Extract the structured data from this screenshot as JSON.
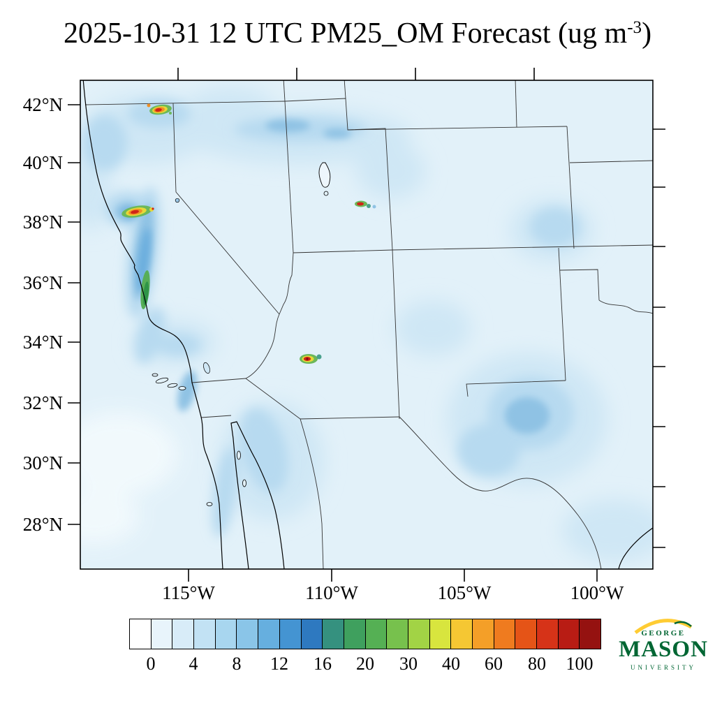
{
  "title": {
    "main": "2025-10-31 12 UTC PM25_OM Forecast (ug m",
    "sup": "-3",
    "close": ")"
  },
  "axes": {
    "lat_labels": [
      "42°N",
      "40°N",
      "38°N",
      "36°N",
      "34°N",
      "32°N",
      "30°N",
      "28°N"
    ],
    "lon_labels": [
      "115°W",
      "110°W",
      "105°W",
      "100°W"
    ]
  },
  "colorbar": {
    "tick_labels": [
      "0",
      "4",
      "8",
      "12",
      "16",
      "20",
      "30",
      "40",
      "60",
      "80",
      "100"
    ],
    "cell_colors": [
      "#ffffff",
      "#e8f4fb",
      "#d8ecf8",
      "#c2e2f4",
      "#a8d6ef",
      "#8ac5e8",
      "#66afdf",
      "#4494d2",
      "#2e79c0",
      "#35917f",
      "#3fa05e",
      "#55b054",
      "#77c14d",
      "#a2d345",
      "#d8e53e",
      "#f5c733",
      "#f49f28",
      "#ef7b1f",
      "#e55417",
      "#d63318",
      "#b81c14",
      "#951210"
    ],
    "accent_green": "#006633",
    "accent_gold": "#ffcc33"
  },
  "logo": {
    "top": "GEORGE",
    "name": "MASON",
    "bottom": "UNIVERSITY"
  }
}
